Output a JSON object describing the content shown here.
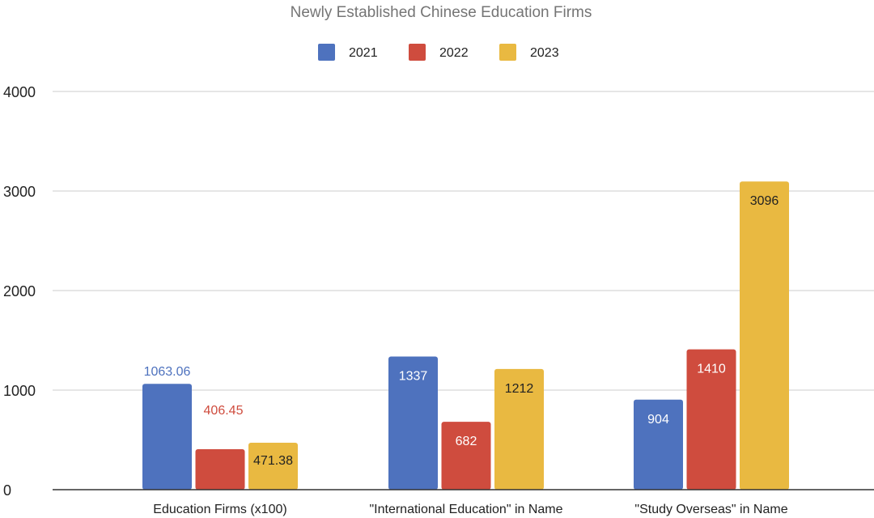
{
  "chart_data": {
    "type": "bar",
    "title": "Newly Established Chinese Education Firms",
    "categories": [
      "Education Firms (x100)",
      "\"International Education\" in Name",
      "\"Study Overseas\" in Name"
    ],
    "series": [
      {
        "name": "2021",
        "color": "#4e72be",
        "values": [
          1063.06,
          1337,
          904
        ],
        "labels": [
          "1063.06",
          "1337",
          "904"
        ]
      },
      {
        "name": "2022",
        "color": "#cf4c3e",
        "values": [
          406.45,
          682,
          1410
        ],
        "labels": [
          "406.45",
          "682",
          "1410"
        ]
      },
      {
        "name": "2023",
        "color": "#e9b941",
        "values": [
          471.38,
          1212,
          3096
        ],
        "labels": [
          "471.38",
          "1212",
          "3096"
        ]
      }
    ],
    "ylim": [
      0,
      4000
    ],
    "yticks": [
      "0",
      "1000",
      "2000",
      "3000",
      "4000"
    ],
    "grid": true,
    "legend": "top-center",
    "xlabel": "",
    "ylabel": ""
  }
}
